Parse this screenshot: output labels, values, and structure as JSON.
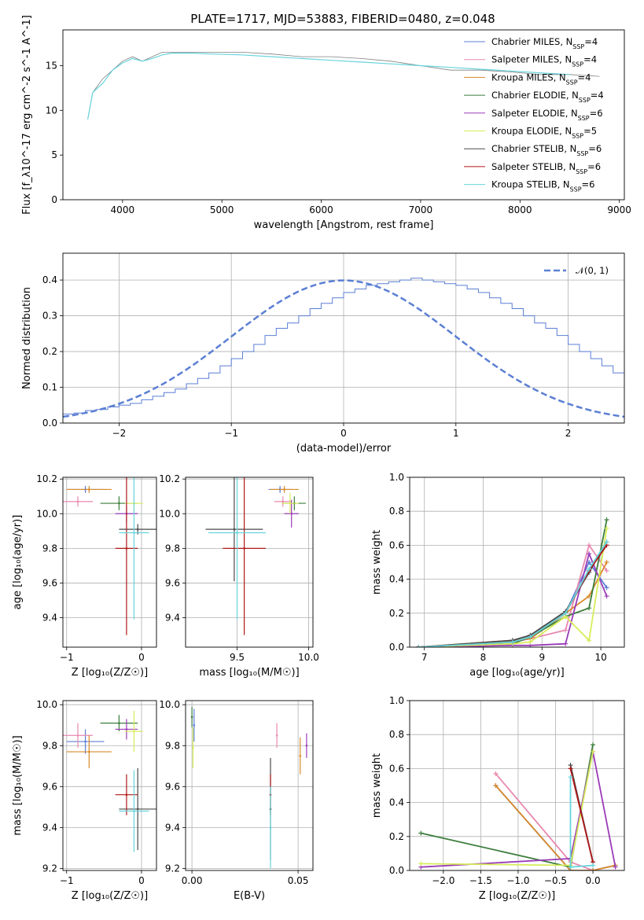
{
  "figure": {
    "title": "PLATE=1717, MJD=53883, FIBERID=0480, z=0.048"
  },
  "colors": {
    "series": [
      "#5b7fd4",
      "#e889b0",
      "#d98a2a",
      "#3c7d3c",
      "#9a3cb8",
      "#d8ec5a",
      "#4a4a4a",
      "#b01818",
      "#66d4dc"
    ],
    "data_spectrum": "#808080",
    "normal": "#5b7fd4"
  },
  "chart_data": [
    {
      "id": "spectrum",
      "type": "line",
      "xlabel": "wavelength [Angstrom, rest frame]",
      "ylabel": "Flux [f_λ10^-17 erg cm^-2 s^-1 A^-1]",
      "xlim": [
        3400,
        9050
      ],
      "ylim": [
        0,
        19
      ],
      "xticks": [
        "4000",
        "5000",
        "6000",
        "7000",
        "8000",
        "9000"
      ],
      "yticks": [
        "0",
        "5",
        "10",
        "15"
      ],
      "grid": false,
      "legend_position": "top-right",
      "legend": [
        {
          "model": "Chabrier MILES",
          "nssp": "4"
        },
        {
          "model": "Salpeter MILES",
          "nssp": "4"
        },
        {
          "model": "Kroupa MILES",
          "nssp": "4"
        },
        {
          "model": "Chabrier ELODIE",
          "nssp": "4"
        },
        {
          "model": "Salpeter ELODIE",
          "nssp": "6"
        },
        {
          "model": "Kroupa ELODIE",
          "nssp": "5"
        },
        {
          "model": "Chabrier STELIB",
          "nssp": "6"
        },
        {
          "model": "Salpeter STELIB",
          "nssp": "6"
        },
        {
          "model": "Kroupa STELIB",
          "nssp": "6"
        }
      ],
      "series": [
        {
          "name": "data",
          "x": [
            3650,
            3700,
            3800,
            3900,
            4000,
            4100,
            4200,
            4300,
            4400,
            4500,
            4700,
            4900,
            5200,
            5500,
            5800,
            6100,
            6400,
            6700,
            7000,
            7300,
            7600,
            7900,
            8200,
            8500,
            8800
          ],
          "y": [
            9,
            12,
            13.5,
            14.5,
            15.5,
            16,
            15.5,
            16,
            16.5,
            16.5,
            16.5,
            16.5,
            16.5,
            16.3,
            16,
            16,
            15.8,
            15.5,
            15,
            14.5,
            14.5,
            14.3,
            14,
            14,
            13.8
          ]
        },
        {
          "name": "model",
          "x": [
            3650,
            3700,
            3800,
            3900,
            4000,
            4100,
            4200,
            4300,
            4400,
            4500,
            4700,
            4900,
            5200,
            5500,
            5800,
            6100,
            6400,
            6700,
            7000,
            7300,
            7600,
            7900,
            8200,
            8500
          ],
          "y": [
            9,
            12,
            13,
            14.5,
            15.3,
            15.8,
            15.5,
            15.8,
            16.2,
            16.4,
            16.4,
            16.3,
            16.2,
            16,
            15.8,
            15.6,
            15.4,
            15.2,
            15,
            14.8,
            14.6,
            14.4,
            14.2,
            14
          ]
        }
      ]
    },
    {
      "id": "residuals",
      "type": "line",
      "xlabel": "(data-model)/error",
      "ylabel": "Normed distribution",
      "xlim": [
        -2.5,
        2.5
      ],
      "ylim": [
        0,
        0.475
      ],
      "xticks": [
        "−2",
        "−1",
        "0",
        "1",
        "2"
      ],
      "yticks": [
        "0.0",
        "0.1",
        "0.2",
        "0.3",
        "0.4"
      ],
      "grid": true,
      "legend_position": "top-right",
      "legend": [
        {
          "name": "𝒩(0, 1)"
        }
      ],
      "bin_width": 0.1,
      "series": [
        {
          "name": "histogram",
          "bin_start": -2.5,
          "values": [
            0.025,
            0.028,
            0.035,
            0.038,
            0.045,
            0.05,
            0.055,
            0.065,
            0.075,
            0.085,
            0.095,
            0.11,
            0.125,
            0.14,
            0.16,
            0.18,
            0.2,
            0.22,
            0.245,
            0.265,
            0.28,
            0.3,
            0.32,
            0.335,
            0.35,
            0.365,
            0.375,
            0.385,
            0.39,
            0.395,
            0.4,
            0.405,
            0.4,
            0.395,
            0.39,
            0.385,
            0.375,
            0.365,
            0.35,
            0.335,
            0.32,
            0.3,
            0.28,
            0.265,
            0.245,
            0.22,
            0.2,
            0.18,
            0.16,
            0.14
          ]
        }
      ]
    },
    {
      "id": "age-Z",
      "type": "scatter",
      "xlabel": "Z [log₁₀(Z/Z☉)]",
      "ylabel": "age  [log₁₀(age/yr)]",
      "xlim": [
        -1.05,
        0.2
      ],
      "ylim": [
        9.23,
        10.21
      ],
      "xticks": [
        "−1",
        "0"
      ],
      "yticks": [
        "9.4",
        "9.6",
        "9.8",
        "10.0",
        "10.2"
      ],
      "grid": true,
      "points": [
        {
          "x": -0.75,
          "y": 10.14,
          "xerr": 0.25,
          "yerr": 0.02
        },
        {
          "x": -0.85,
          "y": 10.07,
          "xerr": 0.2,
          "yerr": 0.03
        },
        {
          "x": -0.7,
          "y": 10.14,
          "xerr": 0.3,
          "yerr": 0.02
        },
        {
          "x": -0.3,
          "y": 10.06,
          "xerr": 0.25,
          "yerr": 0.04
        },
        {
          "x": -0.2,
          "y": 10.0,
          "xerr": 0.15,
          "yerr": 0.05
        },
        {
          "x": -0.1,
          "y": 10.06,
          "xerr": 0.12,
          "yerr": 0.05
        },
        {
          "x": -0.05,
          "y": 9.91,
          "xerr": 0.25,
          "yerr": 0.03
        },
        {
          "x": -0.2,
          "y": 9.8,
          "xerr": 0.15,
          "yerr": 0.5
        },
        {
          "x": -0.1,
          "y": 9.89,
          "xerr": 0.2,
          "yerr": 0.5
        }
      ]
    },
    {
      "id": "age-mass",
      "type": "scatter",
      "xlabel": "mass [log₁₀(M/M☉)]",
      "ylabel": "",
      "xlim": [
        9.14,
        10.03
      ],
      "ylim": [
        9.23,
        10.21
      ],
      "xticks": [
        "9.5",
        "10.0"
      ],
      "yticks": [
        "9.4",
        "9.6",
        "9.8",
        "10.0",
        "10.2"
      ],
      "grid": true,
      "points": [
        {
          "x": 9.8,
          "y": 10.14,
          "xerr": 0.08,
          "yerr": 0.02
        },
        {
          "x": 9.82,
          "y": 10.07,
          "xerr": 0.06,
          "yerr": 0.03
        },
        {
          "x": 9.83,
          "y": 10.14,
          "xerr": 0.1,
          "yerr": 0.02
        },
        {
          "x": 9.9,
          "y": 10.06,
          "xerr": 0.08,
          "yerr": 0.04
        },
        {
          "x": 9.88,
          "y": 10.0,
          "xerr": 0.05,
          "yerr": 0.08
        },
        {
          "x": 9.87,
          "y": 10.06,
          "xerr": 0.06,
          "yerr": 0.06
        },
        {
          "x": 9.48,
          "y": 9.91,
          "xerr": 0.2,
          "yerr": 0.3
        },
        {
          "x": 9.55,
          "y": 9.8,
          "xerr": 0.15,
          "yerr": 0.5
        },
        {
          "x": 9.5,
          "y": 9.89,
          "xerr": 0.2,
          "yerr": 0.5
        }
      ]
    },
    {
      "id": "weight-age",
      "type": "line",
      "xlabel": "age  [log₁₀(age/yr)]",
      "ylabel": "mass weight",
      "xlim": [
        6.75,
        10.4
      ],
      "ylim": [
        0,
        1.0
      ],
      "xticks": [
        "7",
        "8",
        "9",
        "10"
      ],
      "yticks": [
        "0.0",
        "0.2",
        "0.4",
        "0.6",
        "0.8",
        "1.0"
      ],
      "grid": true,
      "x": [
        6.9,
        8.5,
        8.8,
        9.4,
        9.8,
        10.1
      ],
      "series": [
        {
          "values": [
            0.0,
            0.03,
            0.05,
            0.2,
            0.5,
            0.35
          ]
        },
        {
          "values": [
            0.0,
            0.03,
            0.05,
            0.1,
            0.6,
            0.45
          ]
        },
        {
          "values": [
            0.0,
            0.04,
            0.05,
            0.2,
            0.3,
            0.5
          ]
        },
        {
          "values": [
            0.0,
            0.02,
            0.06,
            0.18,
            0.23,
            0.75
          ]
        },
        {
          "values": [
            0.0,
            0.01,
            0.01,
            0.02,
            0.55,
            0.3
          ]
        },
        {
          "values": [
            0.0,
            0.02,
            0.03,
            0.18,
            0.04,
            0.7
          ]
        },
        {
          "values": [
            0.0,
            0.04,
            0.07,
            0.21,
            0.44,
            0.62
          ]
        },
        {
          "values": [
            0.0,
            0.03,
            0.06,
            0.2,
            0.45,
            0.6
          ]
        },
        {
          "values": [
            0.0,
            0.03,
            0.06,
            0.2,
            0.46,
            0.62
          ]
        }
      ]
    },
    {
      "id": "mass-Z",
      "type": "scatter",
      "xlabel": "Z [log₁₀(Z/Z☉)]",
      "ylabel": "mass [log₁₀(M/M☉)]",
      "xlim": [
        -1.05,
        0.2
      ],
      "ylim": [
        9.19,
        10.02
      ],
      "xticks": [
        "−1",
        "0"
      ],
      "yticks": [
        "9.2",
        "9.4",
        "9.6",
        "9.8",
        "10.0"
      ],
      "grid": true,
      "points": [
        {
          "x": -0.75,
          "y": 9.82,
          "xerr": 0.25,
          "yerr": 0.06
        },
        {
          "x": -0.85,
          "y": 9.85,
          "xerr": 0.2,
          "yerr": 0.06
        },
        {
          "x": -0.7,
          "y": 9.77,
          "xerr": 0.3,
          "yerr": 0.08
        },
        {
          "x": -0.3,
          "y": 9.91,
          "xerr": 0.25,
          "yerr": 0.04
        },
        {
          "x": -0.2,
          "y": 9.88,
          "xerr": 0.15,
          "yerr": 0.05
        },
        {
          "x": -0.1,
          "y": 9.87,
          "xerr": 0.12,
          "yerr": 0.1
        },
        {
          "x": -0.05,
          "y": 9.49,
          "xerr": 0.25,
          "yerr": 0.2
        },
        {
          "x": -0.2,
          "y": 9.56,
          "xerr": 0.15,
          "yerr": 0.1
        },
        {
          "x": -0.1,
          "y": 9.48,
          "xerr": 0.2,
          "yerr": 0.2
        }
      ]
    },
    {
      "id": "mass-ebv",
      "type": "scatter",
      "xlabel": "E(B-V)",
      "ylabel": "",
      "xlim": [
        -0.003,
        0.057
      ],
      "ylim": [
        9.19,
        10.02
      ],
      "xticks": [
        "0.00",
        "0.05"
      ],
      "yticks": [
        "9.2",
        "9.4",
        "9.6",
        "9.8",
        "10.0"
      ],
      "grid": true,
      "points": [
        {
          "x": 0.001,
          "y": 9.9,
          "yerr": 0.08
        },
        {
          "x": 0.04,
          "y": 9.85,
          "yerr": 0.06
        },
        {
          "x": 0.051,
          "y": 9.75,
          "yerr": 0.09
        },
        {
          "x": 0.0,
          "y": 9.94,
          "yerr": 0.05
        },
        {
          "x": 0.054,
          "y": 9.8,
          "yerr": 0.06
        },
        {
          "x": 0.0005,
          "y": 9.79,
          "yerr": 0.1
        },
        {
          "x": 0.037,
          "y": 9.49,
          "yerr": 0.25
        },
        {
          "x": 0.037,
          "y": 9.56,
          "yerr": 0.1
        },
        {
          "x": 0.037,
          "y": 9.4,
          "yerr": 0.2
        }
      ]
    },
    {
      "id": "weight-Z",
      "type": "line",
      "xlabel": "Z [log₁₀(Z/Z☉)]",
      "ylabel": "mass weight",
      "xlim": [
        -2.45,
        0.42
      ],
      "ylim": [
        0,
        1.0
      ],
      "xticks": [
        "−2.0",
        "−1.5",
        "−1.0",
        "−0.5",
        "0.0"
      ],
      "yticks": [
        "0.0",
        "0.2",
        "0.4",
        "0.6",
        "0.8",
        "1.0"
      ],
      "grid": true,
      "series": [
        {
          "x": [
            -1.3,
            -0.3,
            0.0,
            0.3
          ],
          "values": [
            0.5,
            0.0,
            0.0,
            0.03
          ]
        },
        {
          "x": [
            -1.3,
            -0.3,
            0.0
          ],
          "values": [
            0.57,
            0.05,
            0.0
          ]
        },
        {
          "x": [
            -1.3,
            -0.3,
            0.0,
            0.3
          ],
          "values": [
            0.5,
            0.0,
            0.0,
            0.03
          ]
        },
        {
          "x": [
            -2.3,
            -0.3,
            0.0
          ],
          "values": [
            0.22,
            0.02,
            0.74
          ]
        },
        {
          "x": [
            -2.3,
            -0.3,
            0.0,
            0.3
          ],
          "values": [
            0.02,
            0.07,
            0.7,
            0.02
          ]
        },
        {
          "x": [
            -2.3,
            -0.3,
            0.0
          ],
          "values": [
            0.04,
            0.03,
            0.7
          ]
        },
        {
          "x": [
            -0.3,
            0.0
          ],
          "values": [
            0.62,
            0.05
          ]
        },
        {
          "x": [
            -0.3,
            0.0
          ],
          "values": [
            0.6,
            0.05
          ]
        },
        {
          "x": [
            -0.3,
            -0.3,
            0.0
          ],
          "values": [
            0.55,
            0.02,
            0.03
          ]
        }
      ]
    }
  ]
}
